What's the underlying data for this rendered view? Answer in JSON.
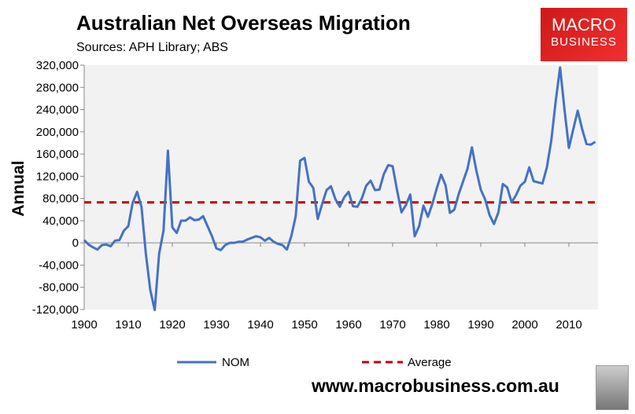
{
  "header": {
    "title": "Australian Net Overseas Migration",
    "sources": "Sources: APH Library; ABS"
  },
  "logo": {
    "line1": "MACRO",
    "line2": "BUSINESS"
  },
  "footer": {
    "website": "www.macrobusiness.com.au"
  },
  "chart_data": {
    "type": "line",
    "title": "Australian Net Overseas Migration",
    "ylabel": "Annual",
    "xlabel": "",
    "ylim": [
      -120000,
      320000
    ],
    "yticks": [
      -120000,
      -80000,
      -40000,
      0,
      40000,
      80000,
      120000,
      160000,
      200000,
      240000,
      280000,
      320000
    ],
    "ytick_labels": [
      "-120,000",
      "-80,000",
      "-40,000",
      "0",
      "40,000",
      "80,000",
      "120,000",
      "160,000",
      "200,000",
      "240,000",
      "280,000",
      "320,000"
    ],
    "xticks": [
      1900,
      1910,
      1920,
      1930,
      1940,
      1950,
      1960,
      1970,
      1980,
      1990,
      2000,
      2010
    ],
    "x_start": 1900,
    "grid": false,
    "legend": "bottom",
    "colors": {
      "NOM": "#4472c4",
      "Average": "#c00000",
      "plot_bg": "#f2f2f2"
    },
    "series": [
      {
        "name": "NOM",
        "values": [
          5000,
          -3000,
          -8000,
          -12000,
          -4000,
          -3000,
          -6000,
          4000,
          5000,
          22000,
          30000,
          72000,
          92000,
          65000,
          -20000,
          -85000,
          -121000,
          -20000,
          22000,
          166000,
          28000,
          18000,
          40000,
          40000,
          46000,
          41000,
          42000,
          48000,
          30000,
          12000,
          -10000,
          -13000,
          -4000,
          0,
          0,
          2000,
          2000,
          6000,
          9000,
          12000,
          10000,
          4000,
          9000,
          2000,
          -2000,
          -4000,
          -12000,
          12000,
          48000,
          148000,
          153000,
          110000,
          99000,
          43000,
          70000,
          95000,
          102000,
          79000,
          65000,
          82000,
          92000,
          66000,
          65000,
          80000,
          103000,
          112000,
          95000,
          96000,
          124000,
          140000,
          138000,
          95000,
          55000,
          68000,
          87000,
          12000,
          30000,
          67000,
          47000,
          70000,
          98000,
          123000,
          104000,
          54000,
          60000,
          88000,
          111000,
          134000,
          172000,
          130000,
          96000,
          78000,
          50000,
          34000,
          55000,
          106000,
          100000,
          73000,
          86000,
          103000,
          110000,
          136000,
          111000,
          109000,
          107000,
          136000,
          184000,
          255000,
          316000,
          240000,
          171000,
          205000,
          238000,
          205000,
          178000,
          177000,
          182000
        ]
      },
      {
        "name": "Average",
        "value": 73000
      }
    ]
  }
}
